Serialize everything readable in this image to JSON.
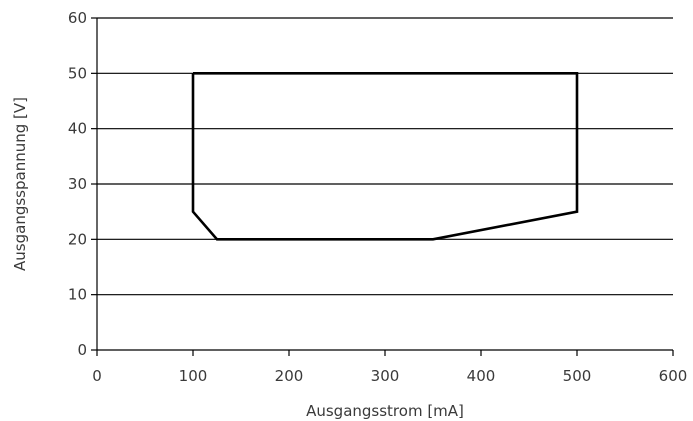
{
  "chart_data": {
    "type": "line",
    "xlabel": "Ausgangsstrom [mA]",
    "ylabel": "Ausgangsspannung [V]",
    "xlim": [
      0,
      600
    ],
    "ylim": [
      0,
      60
    ],
    "x_ticks": [
      0,
      100,
      200,
      300,
      400,
      500,
      600
    ],
    "y_ticks": [
      0,
      10,
      20,
      30,
      40,
      50,
      60
    ],
    "grid": "horizontal",
    "series": [
      {
        "x": [
          100,
          500,
          500,
          350,
          125,
          100,
          100
        ],
        "y": [
          50,
          50,
          25,
          20,
          20,
          25,
          50
        ]
      }
    ],
    "colors": {
      "line": "#000000",
      "grid": "#000000",
      "text": "#3a3a3a"
    }
  }
}
